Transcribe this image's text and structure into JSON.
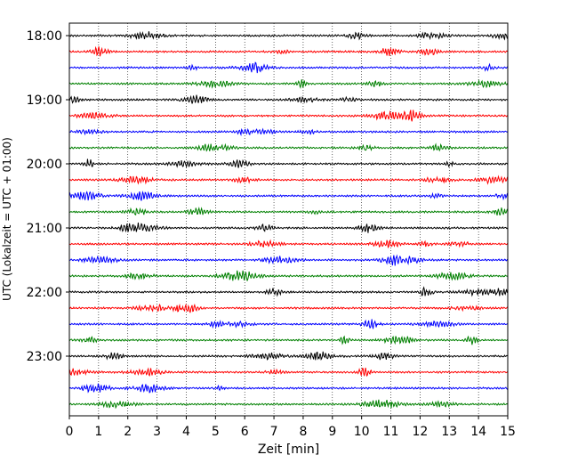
{
  "chart_data": {
    "type": "line",
    "title": "",
    "xlabel": "Zeit  [min]",
    "ylabel": "UTC (Lokalzeit = UTC + 01:00)",
    "xlim": [
      0,
      15
    ],
    "x_ticks": [
      0,
      1,
      2,
      3,
      4,
      5,
      6,
      7,
      8,
      9,
      10,
      11,
      12,
      13,
      14,
      15
    ],
    "y_ticks": [
      "18:00",
      "19:00",
      "20:00",
      "21:00",
      "22:00",
      "23:00"
    ],
    "grid": "vertical dotted",
    "legend": "none",
    "trace_interval_minutes": 15,
    "start_time": "18:00",
    "trace_count": 24,
    "trace_colors": [
      "#000000",
      "#ff0000",
      "#0000ff",
      "#008000"
    ]
  }
}
